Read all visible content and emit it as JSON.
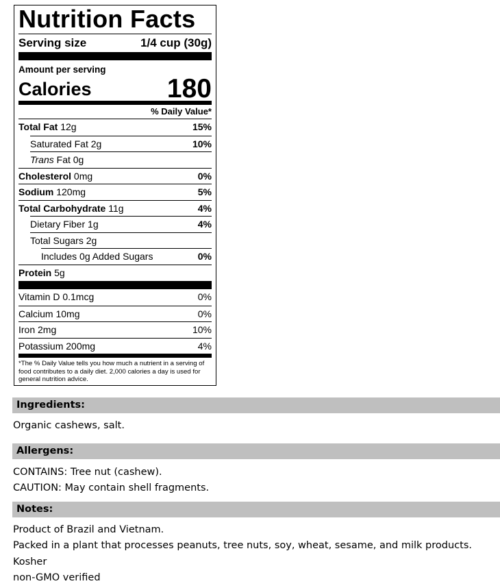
{
  "label": {
    "title": "Nutrition Facts",
    "serving_label": "Serving size",
    "serving_value": "1/4 cup (30g)",
    "amount_per_serving": "Amount per serving",
    "calories_label": "Calories",
    "calories_value": "180",
    "dv_header": "% Daily Value*",
    "nutrients": [
      {
        "name": "Total Fat",
        "amount": "12g",
        "dv": "15%",
        "bold": true,
        "indent": 0
      },
      {
        "name": "Saturated Fat",
        "amount": "2g",
        "dv": "10%",
        "bold": false,
        "indent": 1
      },
      {
        "name": "Trans",
        "name2": "Fat",
        "amount": "0g",
        "dv": "",
        "bold": false,
        "indent": 1,
        "italic": true
      },
      {
        "name": "Cholesterol",
        "amount": "0mg",
        "dv": "0%",
        "bold": true,
        "indent": 0
      },
      {
        "name": "Sodium",
        "amount": "120mg",
        "dv": "5%",
        "bold": true,
        "indent": 0
      },
      {
        "name": "Total Carbohydrate",
        "amount": "11g",
        "dv": "4%",
        "bold": true,
        "indent": 0
      },
      {
        "name": "Dietary Fiber",
        "amount": "1g",
        "dv": "4%",
        "bold": false,
        "indent": 1
      },
      {
        "name": "Total Sugars",
        "amount": "2g",
        "dv": "",
        "bold": false,
        "indent": 1
      },
      {
        "name": "Includes 0g Added Sugars",
        "amount": "",
        "dv": "0%",
        "bold": false,
        "indent": 2
      },
      {
        "name": "Protein",
        "amount": "5g",
        "dv": "",
        "bold": true,
        "indent": 0
      }
    ],
    "vitamins": [
      {
        "name": "Vitamin D",
        "amount": "0.1mcg",
        "dv": "0%"
      },
      {
        "name": "Calcium",
        "amount": "10mg",
        "dv": "0%"
      },
      {
        "name": "Iron",
        "amount": "2mg",
        "dv": "10%"
      },
      {
        "name": "Potassium",
        "amount": "200mg",
        "dv": "4%"
      }
    ],
    "footnote": "*The % Daily Value tells you how much a nutrient in a serving of food contributes to a daily diet. 2,000 calories a day is used for general nutrition advice."
  },
  "ingredients": {
    "heading": "Ingredients:",
    "text": "Organic cashews, salt."
  },
  "allergens": {
    "heading": "Allergens:",
    "lines": [
      "CONTAINS: Tree nut (cashew).",
      "CAUTION: May contain shell fragments."
    ]
  },
  "notes": {
    "heading": "Notes:",
    "lines": [
      "Product of Brazil and Vietnam.",
      "Packed in a plant that processes peanuts, tree nuts, soy, wheat, sesame, and milk products.",
      "Kosher",
      "non-GMO verified"
    ]
  },
  "colors": {
    "section_bg": "#bfbfbf"
  }
}
